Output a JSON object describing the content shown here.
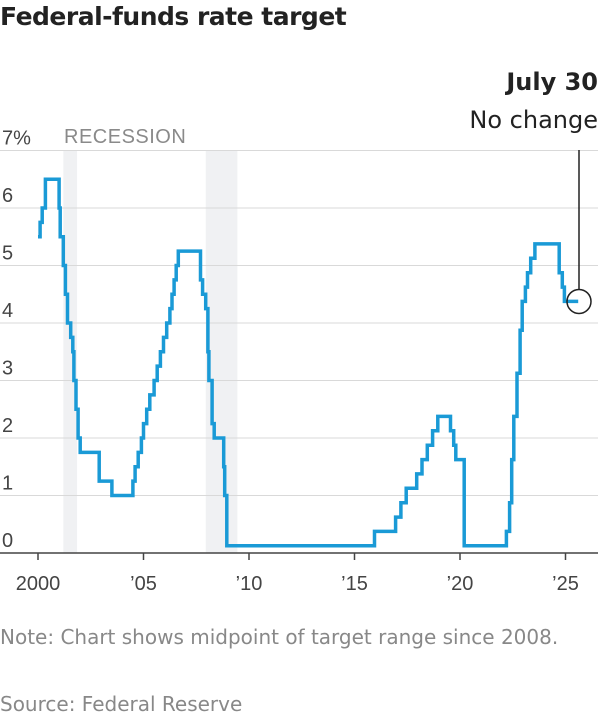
{
  "chart_data": {
    "type": "line",
    "title": "Federal-funds rate target",
    "xlabel": "",
    "ylabel": "",
    "xlim": [
      2000,
      2025.6
    ],
    "ylim": [
      0,
      7
    ],
    "y_ticks": [
      0,
      1,
      2,
      3,
      4,
      5,
      6,
      7
    ],
    "y_tick_labels": [
      "0",
      "1",
      "2",
      "3",
      "4",
      "5",
      "6",
      "7%"
    ],
    "x_ticks": [
      2000,
      2005,
      2010,
      2015,
      2020,
      2025
    ],
    "x_tick_labels": [
      "2000",
      "’05",
      "’10",
      "’15",
      "’20",
      "’25"
    ],
    "recession_label": "RECESSION",
    "recessions": [
      [
        2001.2,
        2001.85
      ],
      [
        2007.95,
        2009.45
      ]
    ],
    "line_color": "#1a9ad6",
    "recession_color": "#f0f1f3",
    "series": [
      {
        "name": "Federal-funds rate target",
        "step": true,
        "points": [
          [
            2000.0,
            5.5
          ],
          [
            2000.1,
            5.75
          ],
          [
            2000.2,
            6.0
          ],
          [
            2000.35,
            6.5
          ],
          [
            2001.0,
            6.0
          ],
          [
            2001.05,
            5.5
          ],
          [
            2001.2,
            5.0
          ],
          [
            2001.3,
            4.5
          ],
          [
            2001.4,
            4.0
          ],
          [
            2001.55,
            3.75
          ],
          [
            2001.65,
            3.5
          ],
          [
            2001.7,
            3.0
          ],
          [
            2001.8,
            2.5
          ],
          [
            2001.9,
            2.0
          ],
          [
            2002.0,
            1.75
          ],
          [
            2002.9,
            1.25
          ],
          [
            2003.5,
            1.0
          ],
          [
            2004.5,
            1.25
          ],
          [
            2004.6,
            1.5
          ],
          [
            2004.75,
            1.75
          ],
          [
            2004.9,
            2.0
          ],
          [
            2005.0,
            2.25
          ],
          [
            2005.15,
            2.5
          ],
          [
            2005.3,
            2.75
          ],
          [
            2005.5,
            3.0
          ],
          [
            2005.65,
            3.25
          ],
          [
            2005.8,
            3.5
          ],
          [
            2005.95,
            3.75
          ],
          [
            2006.1,
            4.0
          ],
          [
            2006.25,
            4.25
          ],
          [
            2006.35,
            4.5
          ],
          [
            2006.45,
            4.75
          ],
          [
            2006.55,
            5.0
          ],
          [
            2006.65,
            5.25
          ],
          [
            2007.7,
            4.75
          ],
          [
            2007.8,
            4.5
          ],
          [
            2007.95,
            4.25
          ],
          [
            2008.05,
            3.5
          ],
          [
            2008.1,
            3.0
          ],
          [
            2008.25,
            2.25
          ],
          [
            2008.35,
            2.0
          ],
          [
            2008.8,
            1.5
          ],
          [
            2008.85,
            1.0
          ],
          [
            2008.95,
            0.125
          ],
          [
            2015.95,
            0.375
          ],
          [
            2016.95,
            0.625
          ],
          [
            2017.2,
            0.875
          ],
          [
            2017.45,
            1.125
          ],
          [
            2017.95,
            1.375
          ],
          [
            2018.2,
            1.625
          ],
          [
            2018.45,
            1.875
          ],
          [
            2018.7,
            2.125
          ],
          [
            2018.95,
            2.375
          ],
          [
            2019.55,
            2.125
          ],
          [
            2019.7,
            1.875
          ],
          [
            2019.8,
            1.625
          ],
          [
            2020.2,
            0.125
          ],
          [
            2022.2,
            0.375
          ],
          [
            2022.35,
            0.875
          ],
          [
            2022.45,
            1.625
          ],
          [
            2022.55,
            2.375
          ],
          [
            2022.7,
            3.125
          ],
          [
            2022.85,
            3.875
          ],
          [
            2022.95,
            4.375
          ],
          [
            2023.1,
            4.625
          ],
          [
            2023.2,
            4.875
          ],
          [
            2023.35,
            5.125
          ],
          [
            2023.55,
            5.375
          ],
          [
            2024.7,
            4.875
          ],
          [
            2024.85,
            4.625
          ],
          [
            2024.95,
            4.375
          ],
          [
            2025.6,
            4.375
          ]
        ]
      }
    ],
    "annotation": {
      "date": "July 30",
      "text": "No change",
      "x": 2025.55,
      "y": 4.375
    },
    "note": "Note: Chart shows midpoint of target range since 2008.",
    "source": "Source: Federal Reserve"
  }
}
